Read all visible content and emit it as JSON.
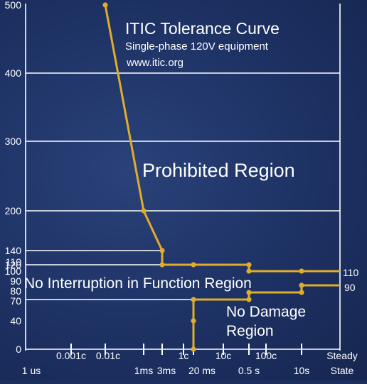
{
  "chart_data": {
    "type": "line",
    "title": "ITIC Tolerance Curve",
    "subtitle_lines": [
      "Single-phase 120V equipment",
      "www.itic.org"
    ],
    "region_labels": {
      "prohibited": "Prohibited Region",
      "no_interruption": "No Interruption in Function Region",
      "no_damage_line1": "No Damage",
      "no_damage_line2": "Region"
    },
    "ylim": [
      0,
      500
    ],
    "y_ticks": [
      "0",
      "40",
      "70",
      "80",
      "90",
      "100",
      "110",
      "120",
      "140",
      "200",
      "300",
      "400",
      "500"
    ],
    "x_ticks_top": [
      "0.001c",
      "0.01c",
      "1c",
      "10c",
      "100c",
      "Steady"
    ],
    "x_ticks_bottom": [
      "1 us",
      "1ms",
      "3ms",
      "20 ms",
      "0.5 s",
      "10s",
      "State"
    ],
    "right_value_labels": [
      "110",
      "90"
    ],
    "grid": true,
    "series": [
      {
        "color": "#e0ad2a",
        "points": [
          {
            "x": "0.01c",
            "y": 500
          },
          {
            "x": "1ms",
            "y": 200
          },
          {
            "x": "3ms",
            "y": 140
          },
          {
            "x": "3ms",
            "y": 120
          },
          {
            "x": "0.5 s",
            "y": 120
          },
          {
            "x": "0.5 s",
            "y": 110
          },
          {
            "x": "Steady State",
            "y": 110
          }
        ]
      },
      {
        "color": "#e0ad2a",
        "points": [
          {
            "x": "20 ms",
            "y": 0
          },
          {
            "x": "20 ms",
            "y": 70
          },
          {
            "x": "0.5 s",
            "y": 70
          },
          {
            "x": "0.5 s",
            "y": 80
          },
          {
            "x": "10s",
            "y": 80
          },
          {
            "x": "10s",
            "y": 90
          },
          {
            "x": "Steady State",
            "y": 90
          }
        ]
      }
    ]
  }
}
